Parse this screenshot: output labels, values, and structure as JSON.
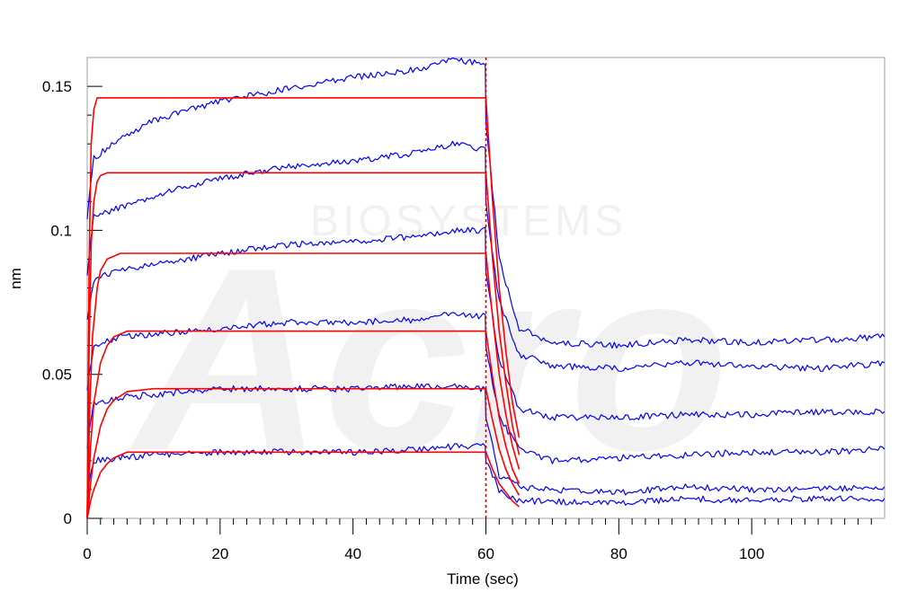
{
  "chart_data": {
    "type": "line",
    "title": "",
    "xlabel": "Time (sec)",
    "ylabel": "nm",
    "xlim": [
      0,
      120
    ],
    "ylim": [
      0,
      0.16
    ],
    "x_ticks": [
      0,
      20,
      40,
      60,
      80,
      100
    ],
    "x_tick_labels": [
      "0",
      "20",
      "40",
      "60",
      "80",
      "100"
    ],
    "y_ticks": [
      0,
      0.05,
      0.1,
      0.15
    ],
    "y_tick_labels": [
      "0",
      "0.05",
      "0.1",
      "0.15"
    ],
    "grid": false,
    "legend": "none",
    "dissociation_start_x": 60,
    "watermark": {
      "logo_text": "Acro",
      "sub_text": "BIOSYSTEMS"
    },
    "colors": {
      "measured": "#0000ff",
      "fit": "#ff0000",
      "marker": "#cc0000"
    },
    "series": [
      {
        "kind": "measured",
        "x": [
          0,
          1,
          5,
          10,
          20,
          30,
          40,
          50,
          55,
          59.9,
          60,
          62,
          65,
          70,
          80,
          90,
          100,
          110,
          120
        ],
        "y": [
          0.105,
          0.125,
          0.132,
          0.138,
          0.145,
          0.149,
          0.153,
          0.156,
          0.159,
          0.158,
          0.138,
          0.09,
          0.066,
          0.061,
          0.06,
          0.062,
          0.061,
          0.062,
          0.063
        ]
      },
      {
        "kind": "measured",
        "x": [
          0,
          1,
          5,
          10,
          20,
          30,
          40,
          50,
          55,
          59.9,
          60,
          62,
          65,
          70,
          80,
          90,
          100,
          110,
          120
        ],
        "y": [
          0.085,
          0.105,
          0.108,
          0.112,
          0.118,
          0.122,
          0.124,
          0.127,
          0.13,
          0.128,
          0.11,
          0.075,
          0.057,
          0.053,
          0.052,
          0.054,
          0.053,
          0.052,
          0.054
        ]
      },
      {
        "kind": "measured",
        "x": [
          0,
          1,
          5,
          10,
          20,
          30,
          40,
          50,
          55,
          59.9,
          60,
          62,
          65,
          70,
          80,
          90,
          100,
          110,
          120
        ],
        "y": [
          0.07,
          0.083,
          0.086,
          0.088,
          0.092,
          0.095,
          0.096,
          0.098,
          0.1,
          0.1,
          0.085,
          0.055,
          0.038,
          0.035,
          0.035,
          0.036,
          0.036,
          0.037,
          0.037
        ]
      },
      {
        "kind": "measured",
        "x": [
          0,
          1,
          5,
          10,
          20,
          30,
          40,
          50,
          55,
          59.9,
          60,
          62,
          65,
          70,
          80,
          90,
          100,
          110,
          120
        ],
        "y": [
          0.045,
          0.06,
          0.063,
          0.064,
          0.066,
          0.068,
          0.068,
          0.069,
          0.071,
          0.07,
          0.06,
          0.035,
          0.024,
          0.02,
          0.021,
          0.022,
          0.023,
          0.023,
          0.024
        ]
      },
      {
        "kind": "measured",
        "x": [
          0,
          1,
          5,
          10,
          20,
          30,
          40,
          50,
          55,
          59.9,
          60,
          62,
          65,
          70,
          80,
          90,
          100,
          110,
          120
        ],
        "y": [
          0.025,
          0.04,
          0.042,
          0.043,
          0.045,
          0.045,
          0.045,
          0.046,
          0.046,
          0.045,
          0.035,
          0.015,
          0.011,
          0.01,
          0.009,
          0.011,
          0.01,
          0.01,
          0.011
        ]
      },
      {
        "kind": "measured",
        "x": [
          0,
          1,
          5,
          10,
          20,
          30,
          40,
          50,
          55,
          59.9,
          60,
          62,
          65,
          70,
          80,
          90,
          100,
          110,
          120
        ],
        "y": [
          0.01,
          0.02,
          0.021,
          0.022,
          0.023,
          0.023,
          0.023,
          0.024,
          0.025,
          0.025,
          0.02,
          0.01,
          0.006,
          0.006,
          0.005,
          0.007,
          0.006,
          0.007,
          0.007
        ]
      },
      {
        "kind": "fit",
        "x": [
          0,
          0.3,
          0.6,
          1,
          1.5,
          2,
          3,
          5,
          59.9,
          60,
          61,
          62,
          63,
          64,
          65
        ],
        "y": [
          0,
          0.09,
          0.13,
          0.142,
          0.146,
          0.146,
          0.146,
          0.146,
          0.146,
          0.146,
          0.11,
          0.08,
          0.058,
          0.04,
          0.028
        ]
      },
      {
        "kind": "fit",
        "x": [
          0,
          0.3,
          0.6,
          1,
          1.5,
          2,
          3,
          5,
          59.9,
          60,
          61,
          62,
          63,
          64,
          65
        ],
        "y": [
          0,
          0.06,
          0.095,
          0.11,
          0.117,
          0.119,
          0.12,
          0.12,
          0.12,
          0.12,
          0.09,
          0.065,
          0.047,
          0.032,
          0.022
        ]
      },
      {
        "kind": "fit",
        "x": [
          0,
          0.4,
          0.8,
          1.5,
          2,
          3,
          5,
          8,
          59.9,
          60,
          61,
          62,
          63,
          64,
          65
        ],
        "y": [
          0,
          0.04,
          0.063,
          0.08,
          0.086,
          0.09,
          0.092,
          0.092,
          0.092,
          0.092,
          0.07,
          0.05,
          0.036,
          0.025,
          0.017
        ]
      },
      {
        "kind": "fit",
        "x": [
          0,
          0.5,
          1,
          2,
          3,
          4,
          6,
          10,
          59.9,
          60,
          61,
          62,
          63,
          64,
          65
        ],
        "y": [
          0,
          0.025,
          0.04,
          0.054,
          0.06,
          0.063,
          0.065,
          0.065,
          0.065,
          0.065,
          0.049,
          0.035,
          0.025,
          0.017,
          0.012
        ]
      },
      {
        "kind": "fit",
        "x": [
          0,
          0.5,
          1,
          2,
          3,
          4,
          6,
          10,
          59.9,
          60,
          61,
          62,
          63,
          64,
          65
        ],
        "y": [
          0,
          0.012,
          0.021,
          0.032,
          0.038,
          0.041,
          0.044,
          0.045,
          0.045,
          0.045,
          0.034,
          0.024,
          0.017,
          0.012,
          0.008
        ]
      },
      {
        "kind": "fit",
        "x": [
          0,
          0.5,
          1,
          2,
          3,
          4,
          6,
          10,
          59.9,
          60,
          61,
          62,
          63,
          64,
          65
        ],
        "y": [
          0,
          0.006,
          0.01,
          0.016,
          0.019,
          0.021,
          0.023,
          0.023,
          0.023,
          0.023,
          0.017,
          0.012,
          0.009,
          0.006,
          0.004
        ]
      }
    ]
  }
}
